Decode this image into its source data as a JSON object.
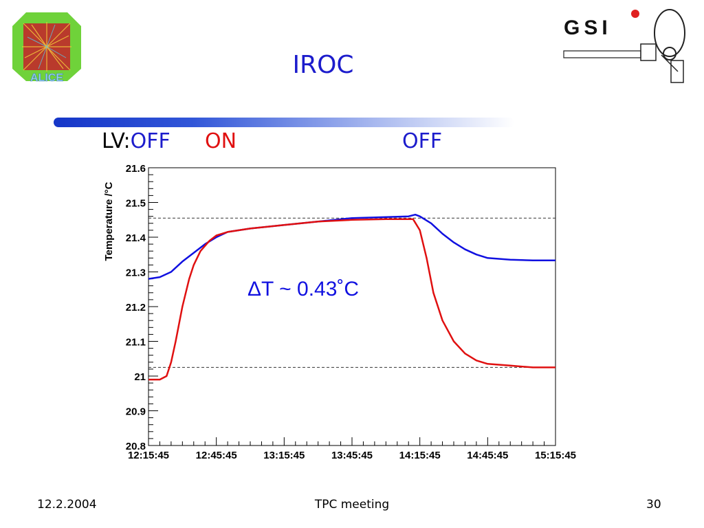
{
  "slide": {
    "title": "IROC",
    "lv_prefix": "LV:",
    "lv_states": [
      "OFF",
      "ON",
      "OFF"
    ],
    "footer_date": "12.2.2004",
    "footer_center": "TPC meeting",
    "footer_page": "30",
    "logo_left_text": "ALICE",
    "logo_right_text": "GSI"
  },
  "colors": {
    "title": "#1c1ccc",
    "off": "#1c1ccc",
    "on": "#e01010",
    "series_blue": "#1010e0",
    "series_red": "#e01010"
  },
  "chart_data": {
    "type": "line",
    "title": "",
    "xlabel": "",
    "ylabel": "Temperature /°C",
    "x_ticks": [
      "12:15:45",
      "12:45:45",
      "13:15:45",
      "13:45:45",
      "14:15:45",
      "14:45:45",
      "15:15:45"
    ],
    "y_ticks": [
      "20.8",
      "20.9",
      "21",
      "21.1",
      "21.2",
      "21.3",
      "21.4",
      "21.5",
      "21.6"
    ],
    "xlim_minutes_from_12_15_45": [
      0,
      180
    ],
    "ylim": [
      20.8,
      21.6
    ],
    "reference_lines": [
      21.455,
      21.025
    ],
    "annotation": "ΔT ~ 0.43˚C",
    "series": [
      {
        "color": "#1010e0",
        "points": [
          [
            0,
            21.28
          ],
          [
            5,
            21.285
          ],
          [
            10,
            21.3
          ],
          [
            15,
            21.33
          ],
          [
            20,
            21.355
          ],
          [
            25,
            21.38
          ],
          [
            30,
            21.4
          ],
          [
            35,
            21.415
          ],
          [
            45,
            21.425
          ],
          [
            60,
            21.435
          ],
          [
            75,
            21.445
          ],
          [
            90,
            21.455
          ],
          [
            105,
            21.458
          ],
          [
            115,
            21.46
          ],
          [
            118,
            21.465
          ],
          [
            120,
            21.46
          ],
          [
            125,
            21.44
          ],
          [
            130,
            21.41
          ],
          [
            135,
            21.385
          ],
          [
            140,
            21.365
          ],
          [
            145,
            21.35
          ],
          [
            150,
            21.34
          ],
          [
            160,
            21.335
          ],
          [
            170,
            21.333
          ],
          [
            180,
            21.333
          ]
        ]
      },
      {
        "color": "#e01010",
        "points": [
          [
            0,
            20.99
          ],
          [
            5,
            20.99
          ],
          [
            8,
            21.0
          ],
          [
            10,
            21.04
          ],
          [
            12,
            21.1
          ],
          [
            15,
            21.2
          ],
          [
            18,
            21.28
          ],
          [
            20,
            21.32
          ],
          [
            23,
            21.36
          ],
          [
            27,
            21.39
          ],
          [
            30,
            21.405
          ],
          [
            35,
            21.415
          ],
          [
            45,
            21.425
          ],
          [
            60,
            21.435
          ],
          [
            75,
            21.445
          ],
          [
            90,
            21.45
          ],
          [
            105,
            21.452
          ],
          [
            117,
            21.452
          ],
          [
            120,
            21.42
          ],
          [
            123,
            21.34
          ],
          [
            126,
            21.24
          ],
          [
            130,
            21.16
          ],
          [
            135,
            21.1
          ],
          [
            140,
            21.065
          ],
          [
            145,
            21.045
          ],
          [
            150,
            21.035
          ],
          [
            160,
            21.03
          ],
          [
            170,
            21.025
          ],
          [
            180,
            21.025
          ]
        ]
      }
    ]
  }
}
